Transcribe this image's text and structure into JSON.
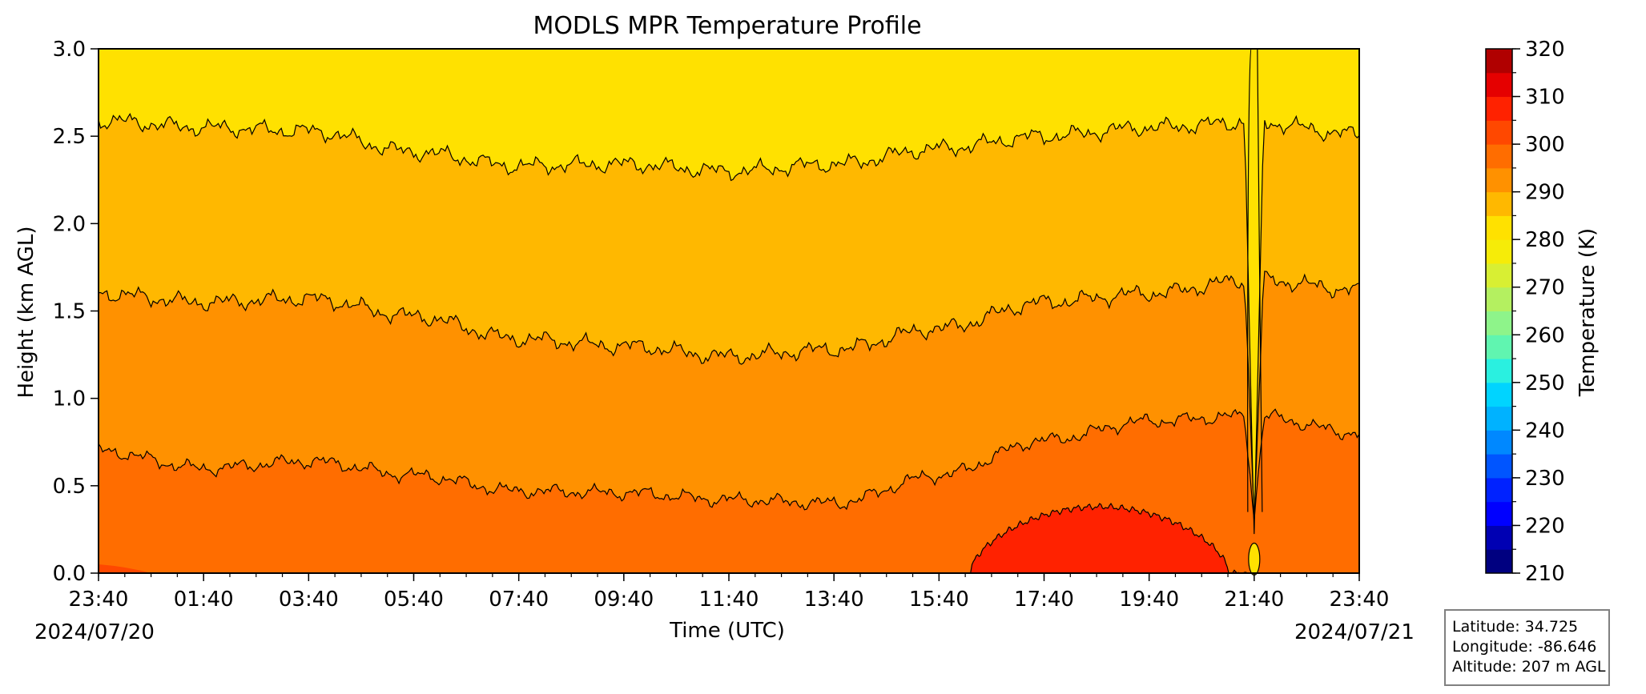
{
  "chart_data": {
    "type": "filled-contour",
    "title": "MODLS MPR Temperature Profile",
    "xlabel": "Time (UTC)",
    "ylabel": "Height (km AGL)",
    "x_ticks": [
      "23:40",
      "01:40",
      "03:40",
      "05:40",
      "07:40",
      "09:40",
      "11:40",
      "13:40",
      "15:40",
      "17:40",
      "19:40",
      "21:40",
      "23:40"
    ],
    "date_start": "2024/07/20",
    "date_end": "2024/07/21",
    "y_ticks": [
      "0.0",
      "0.5",
      "1.0",
      "1.5",
      "2.0",
      "2.5",
      "3.0"
    ],
    "ylim": [
      0,
      3
    ],
    "colorbar": {
      "label": "Temperature (K)",
      "ticks": [
        "210",
        "220",
        "230",
        "240",
        "250",
        "260",
        "270",
        "280",
        "290",
        "300",
        "310",
        "320"
      ],
      "range": [
        210,
        320
      ],
      "level_step": 5,
      "colors": [
        "#000080",
        "#0000b3",
        "#0000ff",
        "#0022ff",
        "#0055ff",
        "#0088ff",
        "#00b2ff",
        "#00d4ff",
        "#2af0e0",
        "#60f5b0",
        "#8ef48a",
        "#b4f060",
        "#d8ef33",
        "#f6ec08",
        "#ffe100",
        "#ffb800",
        "#ff9100",
        "#ff6d00",
        "#ff4800",
        "#ff2200",
        "#e50000",
        "#b00000"
      ]
    },
    "contour_levels_K": [
      300,
      295,
      290,
      285
    ],
    "contour_height_km_at_hour": {
      "hours": [
        0,
        2,
        4,
        6,
        8,
        10,
        12,
        14,
        16,
        18,
        20,
        22,
        24
      ],
      "300K": [
        0.7,
        0.6,
        0.64,
        0.56,
        0.47,
        0.46,
        0.42,
        0.4,
        0.56,
        0.76,
        0.87,
        0.9,
        0.8
      ],
      "295K": [
        1.6,
        1.55,
        1.57,
        1.47,
        1.34,
        1.3,
        1.24,
        1.28,
        1.4,
        1.55,
        1.6,
        1.68,
        1.62
      ],
      "290K": [
        2.59,
        2.55,
        2.53,
        2.41,
        2.33,
        2.34,
        2.3,
        2.34,
        2.43,
        2.5,
        2.55,
        2.58,
        2.51
      ]
    },
    "warm_region_305K": {
      "start_hour": 16.6,
      "end_hour": 22.0,
      "peak_height_km": 0.38
    },
    "anomaly_hour": 22.0
  },
  "site_info": {
    "latitude": "Latitude: 34.725",
    "longitude": "Longitude: -86.646",
    "altitude": "Altitude: 207 m AGL"
  }
}
